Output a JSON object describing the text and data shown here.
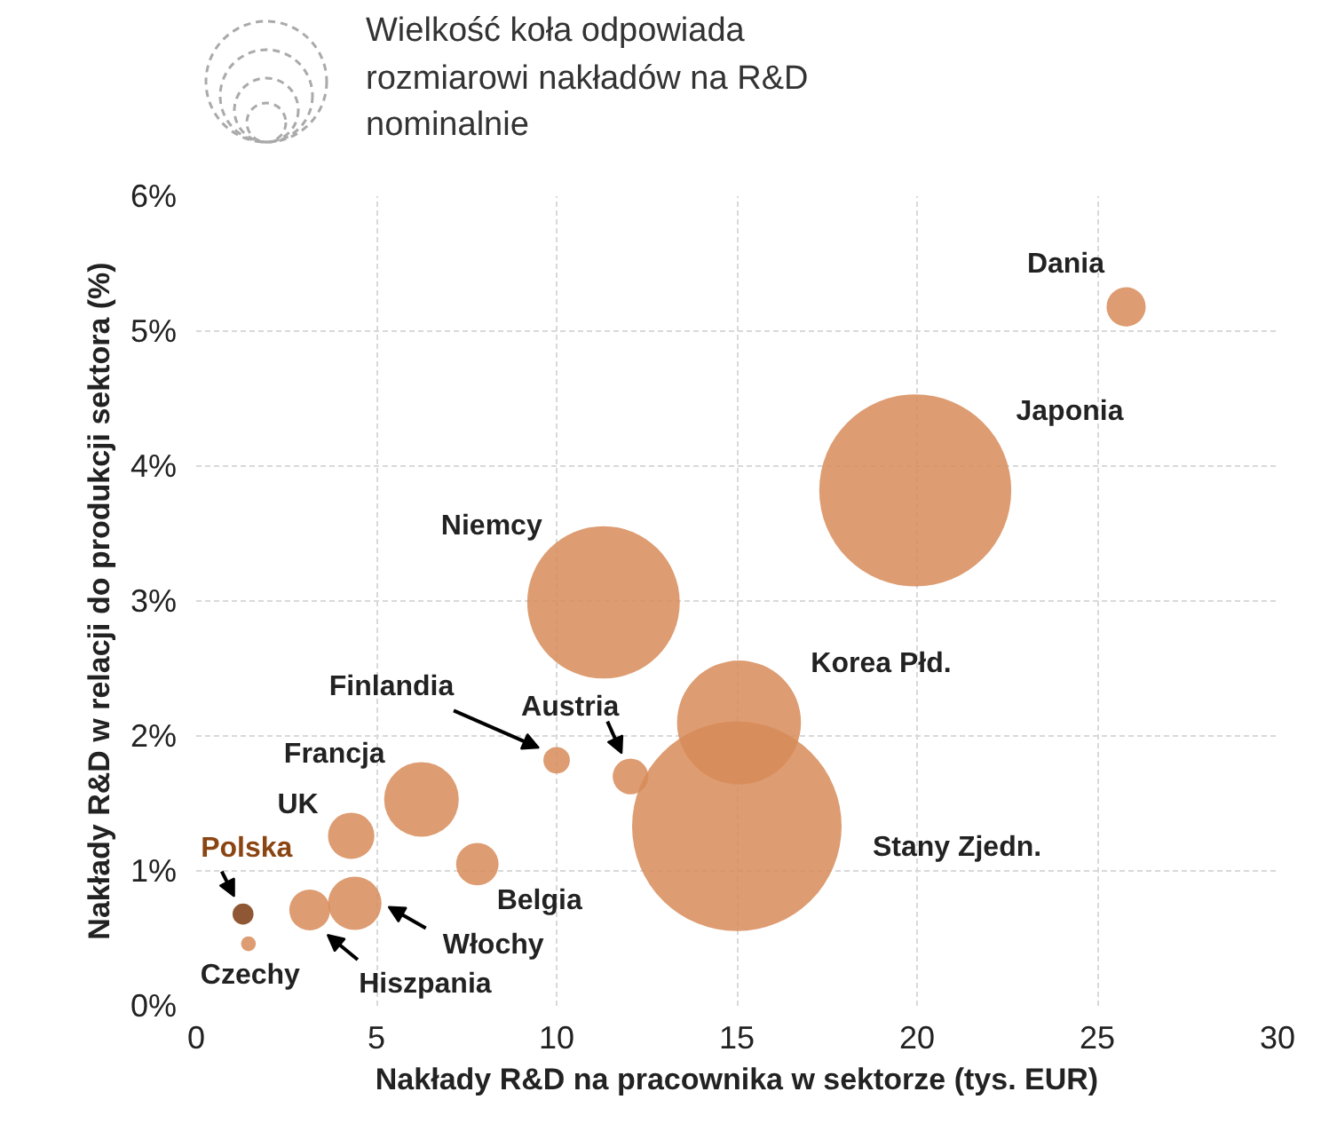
{
  "chart_data": {
    "type": "bubble",
    "xlabel": "Nakłady R&D na pracownika w sektorze (tys. EUR)",
    "ylabel": "Nakłady R&D w relacji do produkcji sektora (%)",
    "x": [
      25.8,
      19.95,
      11.3,
      15.06,
      15.0,
      12.05,
      10.0,
      6.25,
      4.3,
      7.8,
      4.4,
      3.15,
      1.3,
      1.45
    ],
    "values": [
      5.18,
      3.82,
      2.99,
      2.1,
      1.33,
      1.7,
      1.82,
      1.53,
      1.26,
      1.05,
      0.76,
      0.71,
      0.68,
      0.46
    ],
    "sizes": [
      0.035,
      0.84,
      0.53,
      0.35,
      1,
      0.029,
      0.016,
      0.127,
      0.049,
      0.041,
      0.065,
      0.038,
      0.01,
      0.005
    ],
    "colors": [
      "#d78b58",
      "#d78b58",
      "#d78b58",
      "#d78b58",
      "#d78b58",
      "#d78b58",
      "#d78b58",
      "#d78b58",
      "#d78b58",
      "#d78b58",
      "#d78b58",
      "#d78b58",
      "#7b3a10",
      "#d78b58"
    ],
    "annotations": [
      "Wielkość koła odpowiada rozmiarowi nakładów na R&D nominalnie",
      "Dania",
      "Japonia",
      "Niemcy",
      "Korea Płd.",
      "Stany Zjedn.",
      "Austria",
      "Finlandia",
      "Francja",
      "UK",
      "Belgia",
      "Włochy",
      "Hiszpania",
      "Polska",
      "Czechy"
    ],
    "xlim": [
      0,
      30
    ],
    "xticks": [
      0,
      5,
      10,
      15,
      20,
      25,
      30
    ],
    "ylim": [
      0,
      6
    ],
    "yticks": [
      {
        "value": 0,
        "label": "0%"
      },
      {
        "value": 1,
        "label": "1%"
      },
      {
        "value": 2,
        "label": "2%"
      },
      {
        "value": 3,
        "label": "3%"
      },
      {
        "value": 4,
        "label": "4%"
      },
      {
        "value": 5,
        "label": "5%"
      },
      {
        "value": 6,
        "label": "6%"
      }
    ],
    "grid": true,
    "marker": "circle"
  }
}
